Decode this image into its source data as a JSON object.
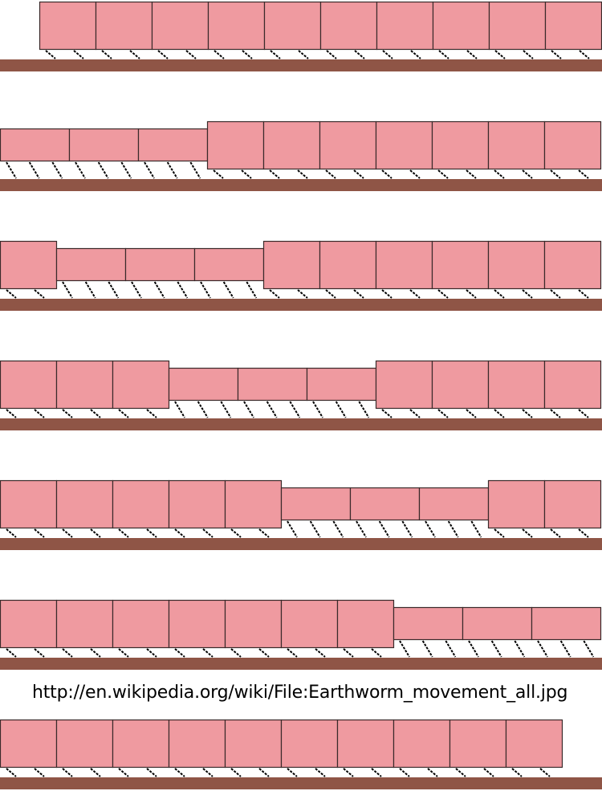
{
  "caption": "http://en.wikipedia.org/wiki/File:Earthworm_movement_all.jpg",
  "colors": {
    "segment_fill": "#ef9aa0",
    "segment_stroke": "#3a2a2a",
    "ground": "#8f5546",
    "setae": "#000000",
    "background": "#ffffff"
  },
  "stages": [
    {
      "contracted_start": 0,
      "contracted_count": 0,
      "segment_count": 10,
      "start_offset": 0.7
    },
    {
      "contracted_start": 0,
      "contracted_count": 3,
      "segment_count": 10,
      "start_offset": 0
    },
    {
      "contracted_start": 1,
      "contracted_count": 3,
      "segment_count": 10,
      "start_offset": 0
    },
    {
      "contracted_start": 3,
      "contracted_count": 3,
      "segment_count": 10,
      "start_offset": 0
    },
    {
      "contracted_start": 5,
      "contracted_count": 3,
      "segment_count": 10,
      "start_offset": 0
    },
    {
      "contracted_start": 7,
      "contracted_count": 3,
      "segment_count": 10,
      "start_offset": 0
    },
    {
      "contracted_start": 0,
      "contracted_count": 0,
      "segment_count": 10,
      "start_offset": 0
    }
  ]
}
